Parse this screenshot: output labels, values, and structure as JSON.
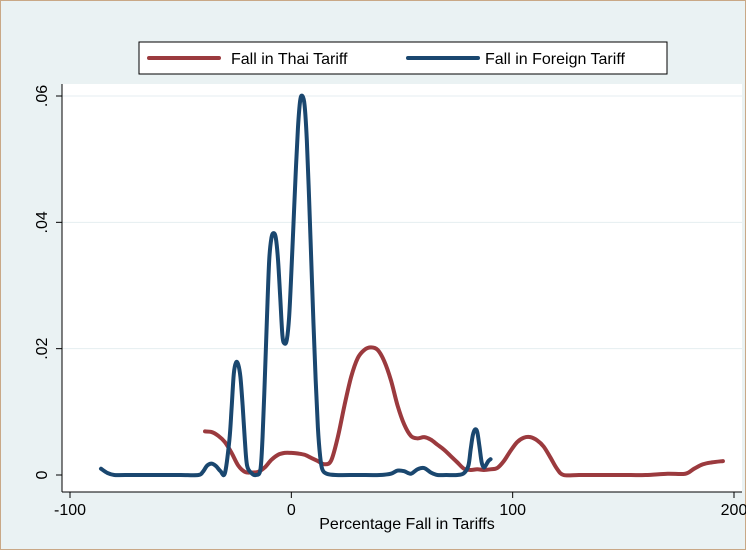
{
  "chart_data": {
    "type": "line",
    "title": "",
    "xlabel": "Percentage Fall in Tariffs",
    "ylabel": "",
    "xlim": [
      -100,
      200
    ],
    "ylim": [
      0,
      0.06
    ],
    "xticks": [
      -100,
      0,
      100,
      200
    ],
    "xtick_labels": [
      "-100",
      "0",
      "100",
      "200"
    ],
    "yticks": [
      0,
      0.02,
      0.04,
      0.06
    ],
    "ytick_labels": [
      "0",
      ".02",
      ".04",
      ".06"
    ],
    "grid": "horizontal",
    "legend_position": "top",
    "series": [
      {
        "name": "Fall in Thai Tariff",
        "color": "#9b3a3e",
        "x": [
          -39,
          -36,
          -33,
          -30,
          -27,
          -24,
          -21,
          -18,
          -15,
          -12,
          -9,
          -6,
          -3,
          0,
          3,
          6,
          9,
          12,
          15,
          18,
          21,
          24,
          27,
          30,
          33,
          36,
          39,
          42,
          45,
          48,
          51,
          54,
          57,
          60,
          63,
          66,
          69,
          72,
          75,
          78,
          81,
          84,
          87,
          90,
          93,
          96,
          99,
          102,
          105,
          108,
          111,
          114,
          117,
          120,
          123,
          130,
          140,
          150,
          160,
          170,
          178,
          182,
          186,
          190,
          195
        ],
        "y": [
          0.0069,
          0.0068,
          0.0062,
          0.0052,
          0.0035,
          0.0015,
          0.0005,
          0.0004,
          0.0005,
          0.0012,
          0.0024,
          0.0032,
          0.0035,
          0.0035,
          0.0034,
          0.0032,
          0.0027,
          0.0022,
          0.0017,
          0.0023,
          0.006,
          0.011,
          0.0155,
          0.0185,
          0.0198,
          0.0202,
          0.0198,
          0.018,
          0.015,
          0.011,
          0.008,
          0.0062,
          0.0058,
          0.006,
          0.0056,
          0.0048,
          0.004,
          0.003,
          0.002,
          0.001,
          0.0008,
          0.0009,
          0.0008,
          0.0009,
          0.0011,
          0.0022,
          0.0038,
          0.0052,
          0.0059,
          0.006,
          0.0055,
          0.0045,
          0.0028,
          0.001,
          0.0,
          0.0,
          0.0,
          0.0,
          0.0,
          0.0002,
          0.0002,
          0.001,
          0.0017,
          0.002,
          0.0022
        ]
      },
      {
        "name": "Fall in Foreign Tariff",
        "color": "#1a476f",
        "x": [
          -86,
          -83,
          -80,
          -75,
          -60,
          -50,
          -42,
          -40,
          -38,
          -36,
          -34,
          -32,
          -30,
          -28,
          -27,
          -26,
          -25,
          -24,
          -23,
          -22,
          -21,
          -20,
          -18,
          -16,
          -14,
          -13,
          -12,
          -11,
          -10,
          -9,
          -8,
          -7,
          -6,
          -5,
          -4,
          -3,
          -2,
          -1,
          0,
          1,
          2,
          3,
          4,
          5,
          6,
          7,
          8,
          9,
          10,
          11,
          12,
          13,
          14,
          16,
          20,
          30,
          40,
          45,
          48,
          51,
          54,
          57,
          60,
          63,
          66,
          70,
          75,
          78,
          80,
          81,
          82,
          83,
          84,
          85,
          86,
          87,
          88,
          89,
          90
        ],
        "y": [
          0.001,
          0.0003,
          0.0,
          0.0,
          0.0,
          0.0,
          0.0,
          0.0005,
          0.0015,
          0.0018,
          0.0014,
          0.0006,
          0.0003,
          0.0055,
          0.0105,
          0.016,
          0.0178,
          0.0175,
          0.0155,
          0.011,
          0.0055,
          0.0015,
          0.0003,
          0.0,
          0.0008,
          0.006,
          0.015,
          0.025,
          0.034,
          0.0375,
          0.0383,
          0.0375,
          0.034,
          0.028,
          0.022,
          0.0208,
          0.0215,
          0.025,
          0.032,
          0.04,
          0.048,
          0.055,
          0.0593,
          0.06,
          0.0585,
          0.053,
          0.044,
          0.034,
          0.024,
          0.015,
          0.0075,
          0.003,
          0.0009,
          0.0002,
          0.0,
          0.0,
          0.0,
          0.0002,
          0.0007,
          0.0006,
          0.0002,
          0.0009,
          0.0011,
          0.0004,
          0.0,
          0.0,
          0.0,
          0.0003,
          0.0015,
          0.004,
          0.0063,
          0.0072,
          0.0068,
          0.0045,
          0.002,
          0.0012,
          0.0016,
          0.0022,
          0.0025
        ]
      }
    ]
  }
}
